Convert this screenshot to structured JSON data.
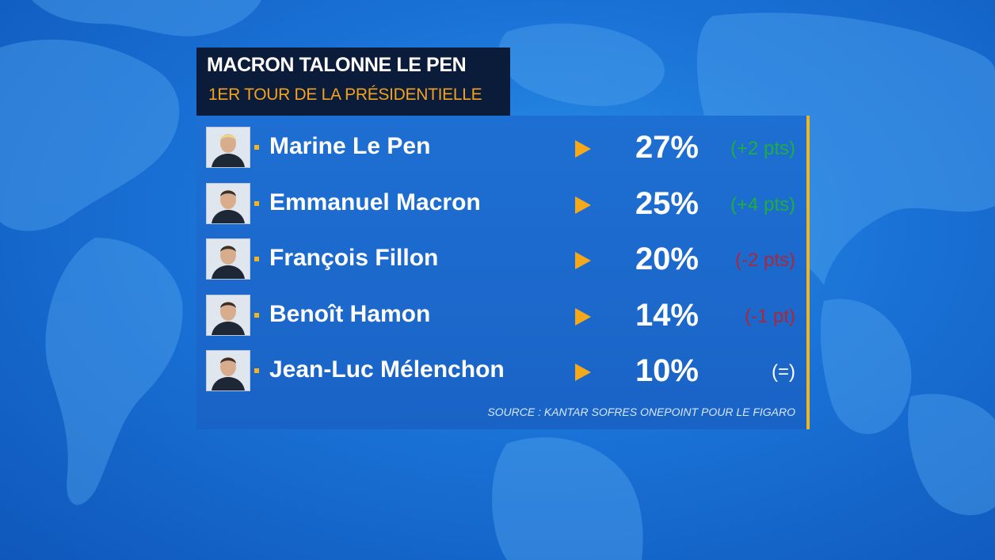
{
  "colors": {
    "accent": "#f4a81c",
    "positive": "#1fae3e",
    "negative": "#a9283a",
    "neutral": "#ffffff"
  },
  "chart_data": {
    "type": "table",
    "title": "MACRON TALONNE LE PEN",
    "subtitle": "1ER TOUR DE LA PRÉSIDENTIELLE",
    "unit": "%",
    "rows": [
      {
        "name": "Marine Le Pen",
        "value": 27,
        "pct_label": "27%",
        "change": "(+2 pts)",
        "trend": "positive"
      },
      {
        "name": "Emmanuel Macron",
        "value": 25,
        "pct_label": "25%",
        "change": "(+4 pts)",
        "trend": "positive"
      },
      {
        "name": "François Fillon",
        "value": 20,
        "pct_label": "20%",
        "change": "(-2 pts)",
        "trend": "negative"
      },
      {
        "name": "Benoît Hamon",
        "value": 14,
        "pct_label": "14%",
        "change": "(-1 pt)",
        "trend": "negative"
      },
      {
        "name": "Jean-Luc Mélenchon",
        "value": 10,
        "pct_label": "10%",
        "change": "(=)",
        "trend": "neutral"
      }
    ],
    "source": "SOURCE : KANTAR SOFRES ONEPOINT POUR LE FIGARO"
  }
}
